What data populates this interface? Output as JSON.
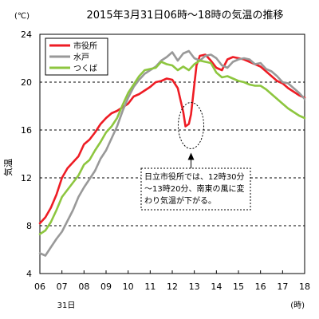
{
  "chart_data": {
    "type": "line",
    "title": "2015年3月31日06時～18時の気温の推移",
    "y_unit_label": "(℃)",
    "ylabel": "気温",
    "x_unit_label": "(時)",
    "date_label": "31日",
    "x_tick_labels": [
      "06",
      "07",
      "08",
      "09",
      "10",
      "11",
      "12",
      "13",
      "14",
      "15",
      "16",
      "17",
      "18"
    ],
    "y_ticks": [
      4,
      8,
      12,
      16,
      20,
      24
    ],
    "xlim": [
      6,
      18
    ],
    "ylim": [
      4,
      24
    ],
    "grid": "horizontal dashed",
    "legend_position": "top-left",
    "series": [
      {
        "name": "市役所",
        "color": "#ee1c24",
        "x": [
          6.0,
          6.25,
          6.5,
          6.75,
          7.0,
          7.25,
          7.5,
          7.75,
          8.0,
          8.25,
          8.5,
          8.75,
          9.0,
          9.25,
          9.5,
          9.75,
          10.0,
          10.25,
          10.5,
          10.75,
          11.0,
          11.25,
          11.5,
          11.75,
          12.0,
          12.25,
          12.5,
          12.6,
          12.75,
          12.85,
          13.0,
          13.1,
          13.25,
          13.5,
          13.75,
          14.0,
          14.25,
          14.5,
          14.75,
          15.0,
          15.25,
          15.5,
          15.75,
          16.0,
          16.25,
          16.5,
          16.75,
          17.0,
          17.25,
          17.5,
          17.75,
          18.0
        ],
        "y": [
          8.2,
          8.7,
          9.5,
          10.6,
          12.0,
          12.8,
          13.3,
          13.8,
          14.8,
          15.2,
          15.8,
          16.5,
          17.0,
          17.4,
          17.6,
          17.9,
          18.2,
          18.8,
          19.0,
          19.3,
          19.6,
          20.0,
          20.1,
          20.3,
          20.2,
          19.5,
          17.5,
          16.3,
          16.5,
          17.3,
          19.8,
          21.4,
          22.2,
          22.3,
          21.8,
          21.2,
          21.0,
          21.9,
          22.1,
          22.0,
          21.9,
          21.7,
          21.5,
          21.3,
          20.9,
          20.5,
          20.1,
          19.9,
          19.5,
          19.2,
          18.9,
          18.7
        ]
      },
      {
        "name": "水戸",
        "color": "#999999",
        "x": [
          6.0,
          6.25,
          6.5,
          6.75,
          7.0,
          7.25,
          7.5,
          7.75,
          8.0,
          8.25,
          8.5,
          8.75,
          9.0,
          9.25,
          9.5,
          9.75,
          10.0,
          10.25,
          10.5,
          10.75,
          11.0,
          11.25,
          11.5,
          11.75,
          12.0,
          12.25,
          12.5,
          12.75,
          13.0,
          13.25,
          13.5,
          13.75,
          14.0,
          14.25,
          14.5,
          14.75,
          15.0,
          15.25,
          15.5,
          15.75,
          16.0,
          16.25,
          16.5,
          16.75,
          17.0,
          17.25,
          17.5,
          17.75,
          18.0
        ],
        "y": [
          5.7,
          5.5,
          6.2,
          6.9,
          7.5,
          8.4,
          9.3,
          10.4,
          11.2,
          11.9,
          12.6,
          13.6,
          14.3,
          15.3,
          16.3,
          17.6,
          18.7,
          19.6,
          20.2,
          20.7,
          21.0,
          21.3,
          21.8,
          22.1,
          22.5,
          21.8,
          22.4,
          22.6,
          22.0,
          21.8,
          22.2,
          22.3,
          22.0,
          21.4,
          21.2,
          21.7,
          21.9,
          22.0,
          21.9,
          21.5,
          21.6,
          21.1,
          20.9,
          20.5,
          20.0,
          19.9,
          19.5,
          19.1,
          18.6
        ]
      },
      {
        "name": "つくば",
        "color": "#8dc63f",
        "x": [
          6.0,
          6.25,
          6.5,
          6.75,
          7.0,
          7.25,
          7.5,
          7.75,
          8.0,
          8.25,
          8.5,
          8.75,
          9.0,
          9.25,
          9.5,
          9.75,
          10.0,
          10.25,
          10.5,
          10.75,
          11.0,
          11.25,
          11.5,
          11.75,
          12.0,
          12.25,
          12.5,
          12.75,
          13.0,
          13.25,
          13.5,
          13.75,
          14.0,
          14.25,
          14.5,
          14.75,
          15.0,
          15.25,
          15.5,
          15.75,
          16.0,
          16.25,
          16.5,
          16.75,
          17.0,
          17.25,
          17.5,
          17.75,
          18.0
        ],
        "y": [
          7.3,
          7.6,
          8.3,
          9.3,
          10.4,
          11.0,
          11.6,
          12.2,
          13.1,
          13.5,
          14.3,
          15.0,
          15.8,
          16.3,
          17.0,
          18.1,
          19.1,
          19.8,
          20.5,
          21.0,
          21.1,
          21.2,
          21.7,
          21.5,
          21.4,
          21.0,
          21.3,
          21.0,
          21.5,
          21.8,
          21.7,
          21.6,
          20.8,
          20.4,
          20.5,
          20.3,
          20.1,
          20.0,
          19.8,
          19.7,
          19.7,
          19.4,
          19.0,
          18.6,
          18.2,
          17.8,
          17.5,
          17.2,
          17.0
        ]
      }
    ],
    "annotation": {
      "lines": [
        "日立市役所では、12時30分",
        "～13時20分、南東の風に変",
        "わり気温が下がる。"
      ],
      "target_x": 12.85,
      "target_y": 16.5
    }
  }
}
